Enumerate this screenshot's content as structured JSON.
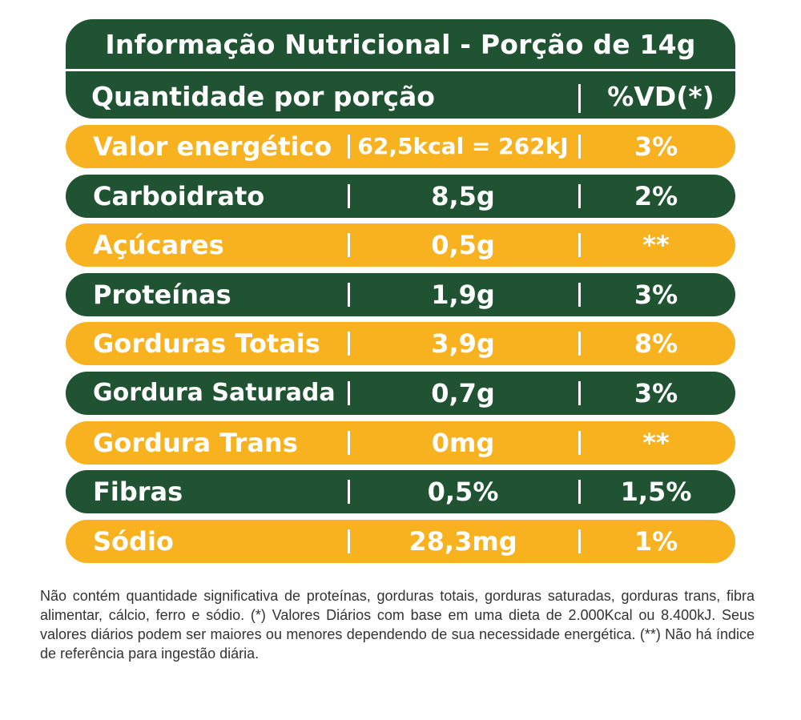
{
  "header": {
    "title": "Informação Nutricional - Porção de 14g",
    "quantity_label": "Quantidade por porção",
    "dv_label": "%VD(*)"
  },
  "rows": [
    {
      "name": "Valor energético",
      "amount": "62,5kcal = 262kJ",
      "dv": "3%",
      "color": "orange"
    },
    {
      "name": "Carboidrato",
      "amount": "8,5g",
      "dv": "2%",
      "color": "green"
    },
    {
      "name": "Açúcares",
      "amount": "0,5g",
      "dv": "**",
      "color": "orange"
    },
    {
      "name": "Proteínas",
      "amount": "1,9g",
      "dv": "3%",
      "color": "green"
    },
    {
      "name": "Gorduras Totais",
      "amount": "3,9g",
      "dv": "8%",
      "color": "orange"
    },
    {
      "name": "Gordura Saturada",
      "amount": "0,7g",
      "dv": "3%",
      "color": "green"
    },
    {
      "name": "Gordura Trans",
      "amount": "0mg",
      "dv": "**",
      "color": "orange"
    },
    {
      "name": "Fibras",
      "amount": "0,5%",
      "dv": "1,5%",
      "color": "green"
    },
    {
      "name": "Sódio",
      "amount": "28,3mg",
      "dv": "1%",
      "color": "orange"
    }
  ],
  "colors": {
    "green": "#1f5331",
    "orange": "#f8b220"
  },
  "footnote": "Não contém quantidade significativa de proteínas, gorduras totais, gorduras saturadas, gorduras trans, fibra alimentar, cálcio, ferro e sódio. (*) Valores Diários com base em uma dieta de 2.000Kcal ou 8.400kJ. Seus valores diários podem ser maiores ou menores dependendo de sua necessidade energética. (**) Não há índice de referência para ingestão diária."
}
